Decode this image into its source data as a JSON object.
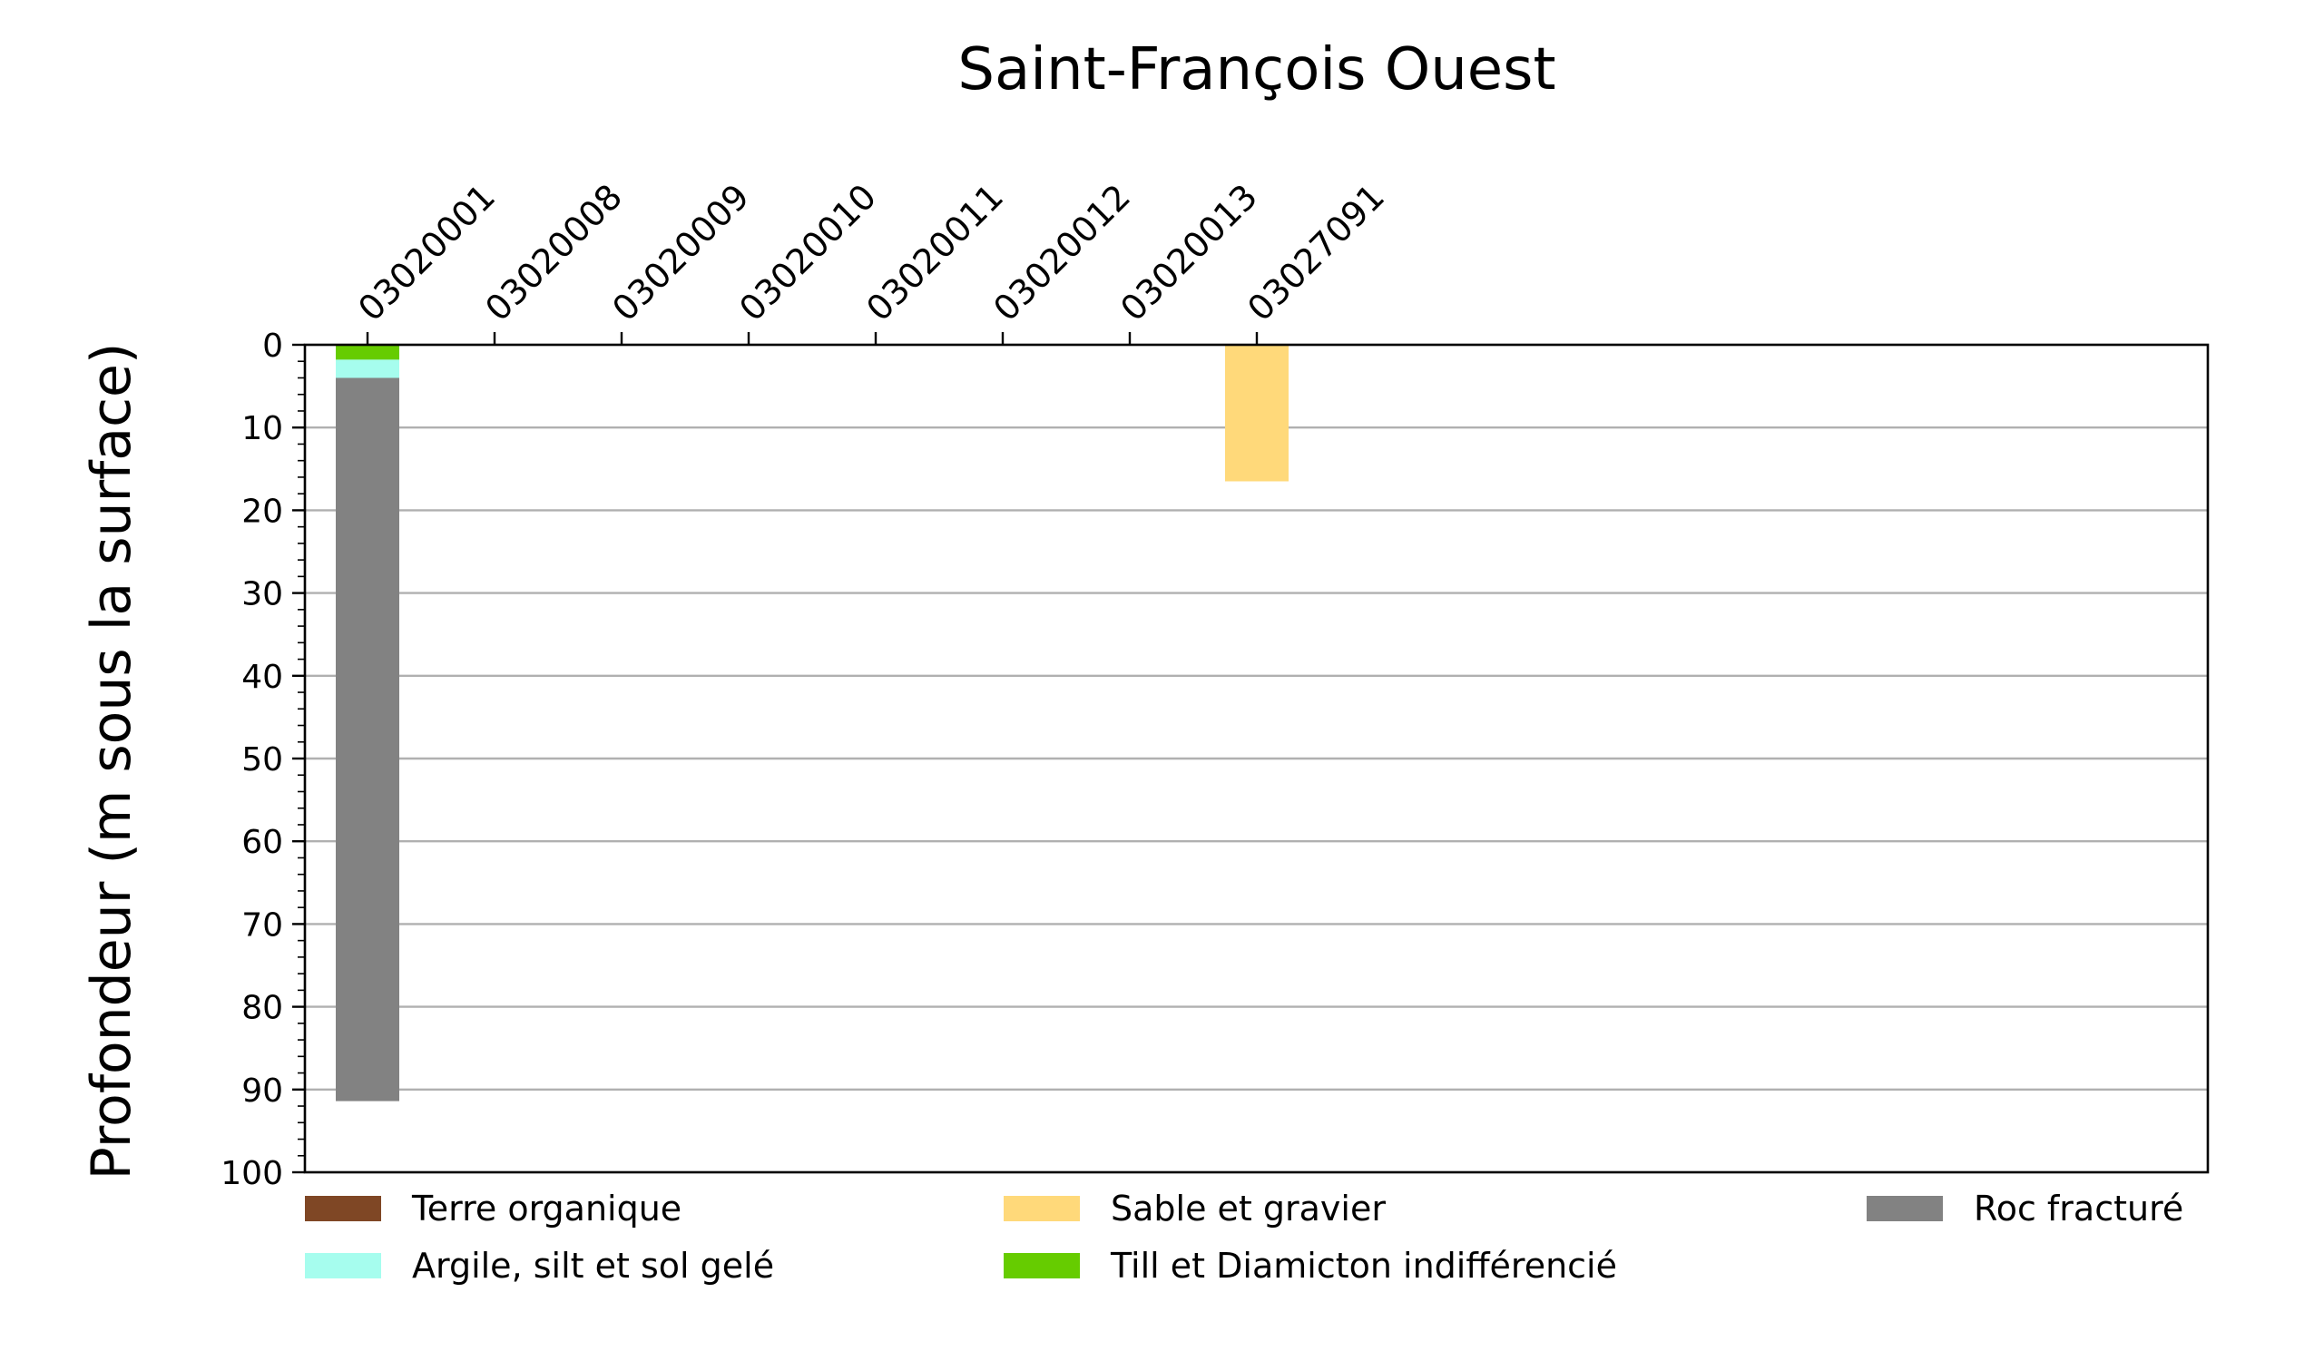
{
  "chart_data": {
    "type": "bar",
    "title": "Saint-François Ouest",
    "ylabel": "Profondeur (m sous la surface)",
    "xlabel": "",
    "ylim": [
      100,
      0
    ],
    "y_ticks": [
      0,
      10,
      20,
      30,
      40,
      50,
      60,
      70,
      80,
      90,
      100
    ],
    "y_grid": true,
    "categories": [
      "03020001",
      "03020008",
      "03020009",
      "03020010",
      "03020011",
      "03020012",
      "03020013",
      "03027091"
    ],
    "bars": [
      {
        "category": "03020001",
        "layers": [
          {
            "material": "Till et Diamicton indifférencié",
            "top": 0,
            "bottom": 1.8
          },
          {
            "material": "Argile, silt et sol gelé",
            "top": 1.8,
            "bottom": 4.0
          },
          {
            "material": "Roc fracturé",
            "top": 4.0,
            "bottom": 91.4
          }
        ]
      },
      {
        "category": "03027091",
        "layers": [
          {
            "material": "Sable et gravier",
            "top": 0,
            "bottom": 16.5
          }
        ]
      }
    ],
    "legend": {
      "placement": "bottom",
      "entries": [
        {
          "label": "Terre organique",
          "color": "#7f4725"
        },
        {
          "label": "Argile, silt et sol gelé",
          "color": "#a6fdee"
        },
        {
          "label": "Till et Diamicton indifférencié",
          "color": "#66cc00"
        },
        {
          "label": "Sable et gravier",
          "color": "#ffd97a"
        },
        {
          "label": "Roc fracturé",
          "color": "#828282"
        }
      ]
    }
  }
}
